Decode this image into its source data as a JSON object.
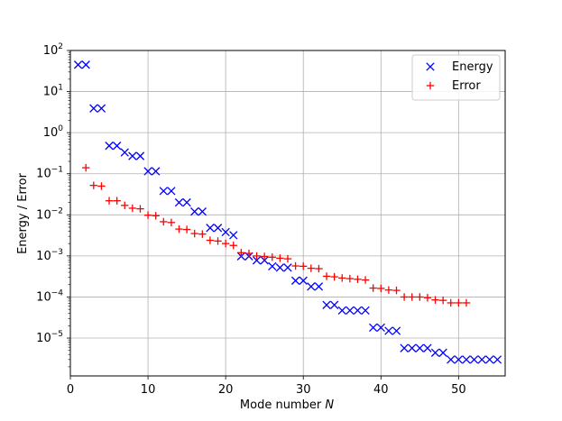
{
  "chart_data": {
    "type": "scatter",
    "xlabel": "Mode number",
    "xlabel_italic": "N",
    "ylabel": "Energy / Error",
    "xlim": [
      0,
      56
    ],
    "ylim": [
      1.2e-06,
      100
    ],
    "yscale": "log",
    "grid": true,
    "legend_position": "top-right",
    "x_ticks": [
      0,
      10,
      20,
      30,
      40,
      50
    ],
    "y_ticks": [
      {
        "value": 1e-05,
        "base": "10",
        "exp": "−5"
      },
      {
        "value": 0.0001,
        "base": "10",
        "exp": "−4"
      },
      {
        "value": 0.001,
        "base": "10",
        "exp": "−3"
      },
      {
        "value": 0.01,
        "base": "10",
        "exp": "−2"
      },
      {
        "value": 0.1,
        "base": "10",
        "exp": "−1"
      },
      {
        "value": 1,
        "base": "10",
        "exp": "0"
      },
      {
        "value": 10,
        "base": "10",
        "exp": "1"
      },
      {
        "value": 100,
        "base": "10",
        "exp": "2"
      }
    ],
    "series": [
      {
        "name": "Energy",
        "marker": "x",
        "color": "#0000ff",
        "points": [
          [
            1,
            45
          ],
          [
            2,
            45
          ],
          [
            3,
            3.9
          ],
          [
            4,
            3.9
          ],
          [
            5,
            0.48
          ],
          [
            6,
            0.48
          ],
          [
            7,
            0.33
          ],
          [
            8,
            0.27
          ],
          [
            9,
            0.27
          ],
          [
            10,
            0.115
          ],
          [
            11,
            0.115
          ],
          [
            12,
            0.038
          ],
          [
            13,
            0.038
          ],
          [
            14,
            0.02
          ],
          [
            15,
            0.02
          ],
          [
            16,
            0.012
          ],
          [
            17,
            0.012
          ],
          [
            18,
            0.0048
          ],
          [
            19,
            0.0048
          ],
          [
            20,
            0.0038
          ],
          [
            21,
            0.0032
          ],
          [
            22,
            0.00098
          ],
          [
            23,
            0.00098
          ],
          [
            24,
            0.00078
          ],
          [
            25,
            0.00078
          ],
          [
            26,
            0.00056
          ],
          [
            27,
            0.00052
          ],
          [
            28,
            0.00052
          ],
          [
            29,
            0.00025
          ],
          [
            30,
            0.00025
          ],
          [
            31,
            0.00018
          ],
          [
            32,
            0.00018
          ],
          [
            33,
            6.4e-05
          ],
          [
            34,
            6.4e-05
          ],
          [
            35,
            4.7e-05
          ],
          [
            36,
            4.7e-05
          ],
          [
            37,
            4.7e-05
          ],
          [
            38,
            4.7e-05
          ],
          [
            39,
            1.8e-05
          ],
          [
            40,
            1.8e-05
          ],
          [
            41,
            1.5e-05
          ],
          [
            42,
            1.5e-05
          ],
          [
            43,
            5.7e-06
          ],
          [
            44,
            5.7e-06
          ],
          [
            45,
            5.7e-06
          ],
          [
            46,
            5.7e-06
          ],
          [
            47,
            4.4e-06
          ],
          [
            48,
            4.4e-06
          ],
          [
            49,
            3e-06
          ],
          [
            50,
            3e-06
          ],
          [
            51,
            3e-06
          ],
          [
            52,
            3e-06
          ],
          [
            53,
            3e-06
          ],
          [
            54,
            3e-06
          ],
          [
            55,
            3e-06
          ]
        ]
      },
      {
        "name": "Error",
        "marker": "+",
        "color": "#ff0000",
        "points": [
          [
            2,
            0.14
          ],
          [
            3,
            0.052
          ],
          [
            4,
            0.05
          ],
          [
            5,
            0.022
          ],
          [
            6,
            0.022
          ],
          [
            7,
            0.017
          ],
          [
            8,
            0.0145
          ],
          [
            9,
            0.014
          ],
          [
            10,
            0.0098
          ],
          [
            11,
            0.0095
          ],
          [
            12,
            0.0068
          ],
          [
            13,
            0.0065
          ],
          [
            14,
            0.0045
          ],
          [
            15,
            0.0044
          ],
          [
            16,
            0.0035
          ],
          [
            17,
            0.0034
          ],
          [
            18,
            0.0024
          ],
          [
            19,
            0.0023
          ],
          [
            20,
            0.002
          ],
          [
            21,
            0.0018
          ],
          [
            22,
            0.0012
          ],
          [
            23,
            0.00115
          ],
          [
            24,
            0.001
          ],
          [
            25,
            0.00097
          ],
          [
            26,
            0.00093
          ],
          [
            27,
            0.00088
          ],
          [
            28,
            0.00085
          ],
          [
            29,
            0.00057
          ],
          [
            30,
            0.00056
          ],
          [
            31,
            0.0005
          ],
          [
            32,
            0.00049
          ],
          [
            33,
            0.00032
          ],
          [
            34,
            0.00031
          ],
          [
            35,
            0.00029
          ],
          [
            36,
            0.00028
          ],
          [
            37,
            0.00027
          ],
          [
            38,
            0.00026
          ],
          [
            39,
            0.000165
          ],
          [
            40,
            0.000162
          ],
          [
            41,
            0.000148
          ],
          [
            42,
            0.000145
          ],
          [
            43,
            0.0001
          ],
          [
            44,
            0.0001
          ],
          [
            45,
            0.0001
          ],
          [
            46,
            9.6e-05
          ],
          [
            47,
            8.5e-05
          ],
          [
            48,
            8.3e-05
          ],
          [
            49,
            7.2e-05
          ],
          [
            50,
            7.2e-05
          ],
          [
            51,
            7.2e-05
          ]
        ]
      }
    ]
  }
}
